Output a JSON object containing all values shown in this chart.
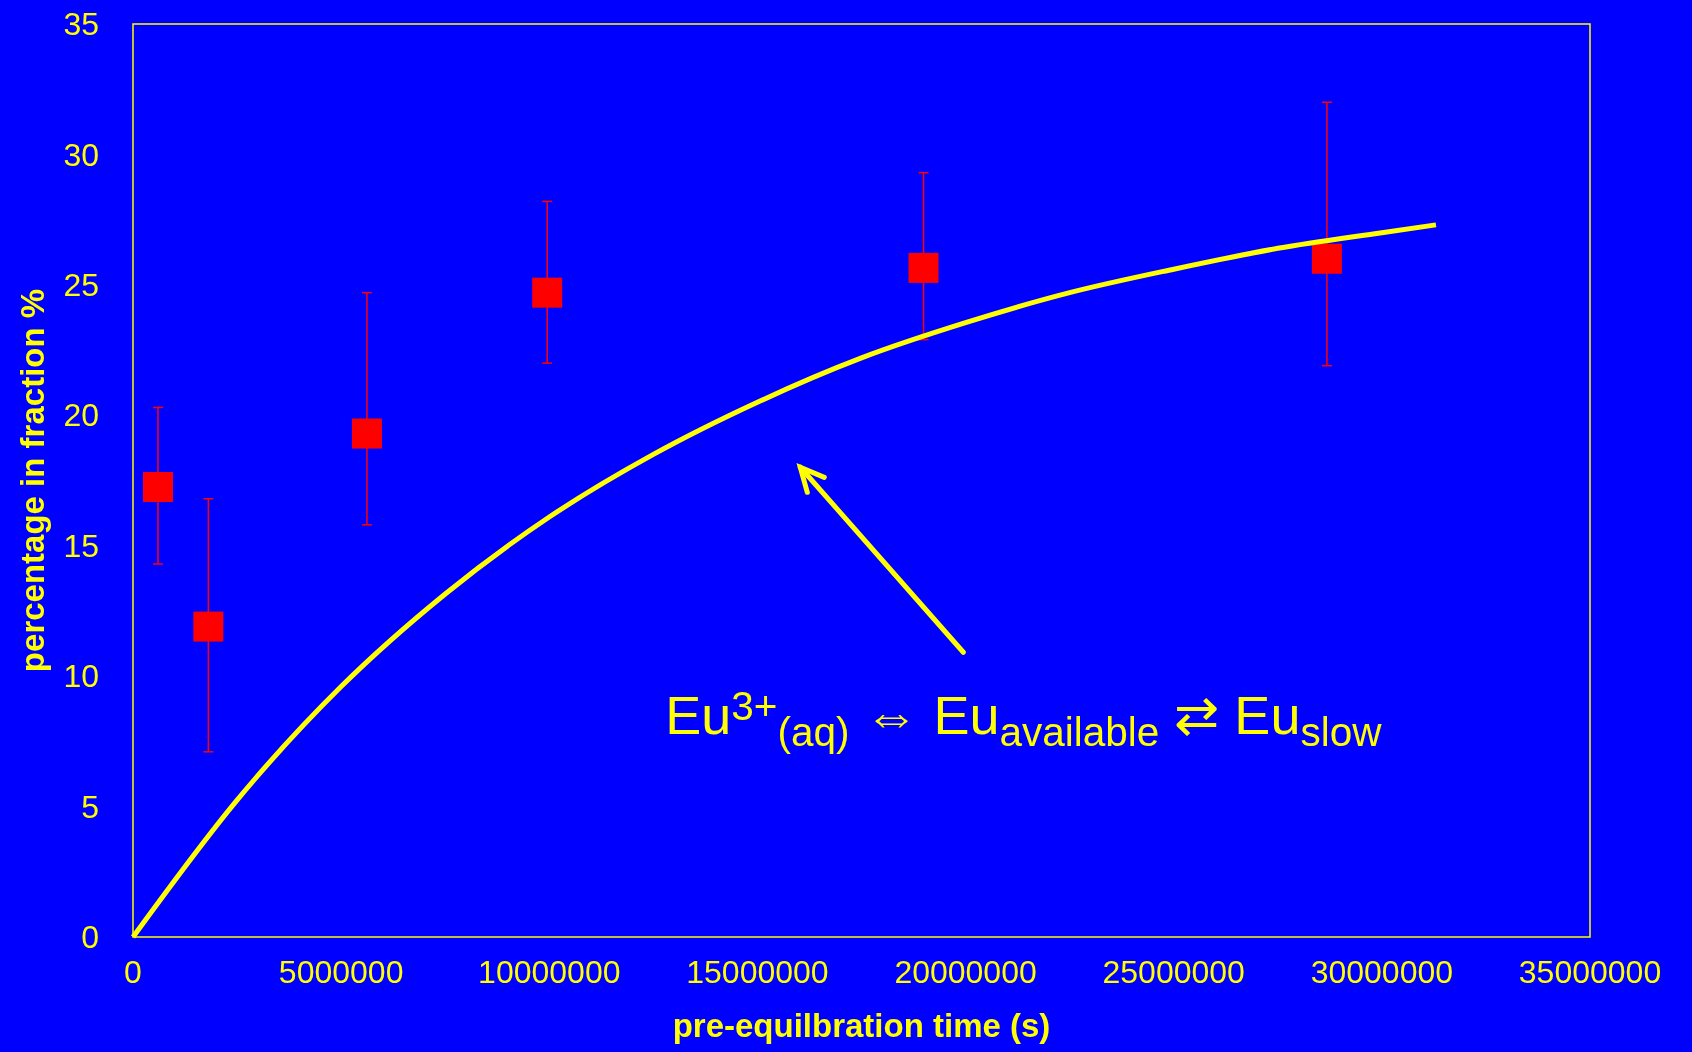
{
  "chart_data": {
    "type": "scatter",
    "xlabel": "pre-equilbration time (s)",
    "ylabel": "percentage in fraction %",
    "xlim": [
      0,
      35000000
    ],
    "xticks": [
      0,
      5000000,
      10000000,
      15000000,
      20000000,
      25000000,
      30000000,
      35000000
    ],
    "ylim": [
      0,
      35
    ],
    "yticks": [
      0,
      5,
      10,
      15,
      20,
      25,
      30,
      35
    ],
    "grid": false,
    "series": [
      {
        "color": "#ff0000",
        "marker": "square",
        "x": [
          600000,
          1810000,
          5620000,
          9950000,
          18990000,
          28680000
        ],
        "values": [
          17.25,
          11.9,
          19.3,
          24.7,
          25.65,
          26.0
        ],
        "errors": [
          [
            14.3,
            20.3
          ],
          [
            7.1,
            16.8
          ],
          [
            15.8,
            24.7
          ],
          [
            22.0,
            28.2
          ],
          [
            22.9,
            29.3
          ],
          [
            21.9,
            32.0
          ]
        ]
      },
      {
        "type": "line",
        "color": "#ffff00",
        "line_style": "solid",
        "x": [
          0,
          2500000,
          5000000,
          7500000,
          10000000,
          12500000,
          15000000,
          17500000,
          20000000,
          22500000,
          25000000,
          27500000,
          30000000,
          31300000
        ],
        "values": [
          0,
          5.25,
          9.6,
          13.15,
          16.1,
          18.5,
          20.5,
          22.2,
          23.55,
          24.7,
          25.6,
          26.4,
          27.0,
          27.3
        ]
      }
    ],
    "annotations": [
      "Eu$^{3+}$$_{(aq)}$ ⇔ Eu$_{available}$ ⇄ Eu$_{slow}$"
    ]
  }
}
